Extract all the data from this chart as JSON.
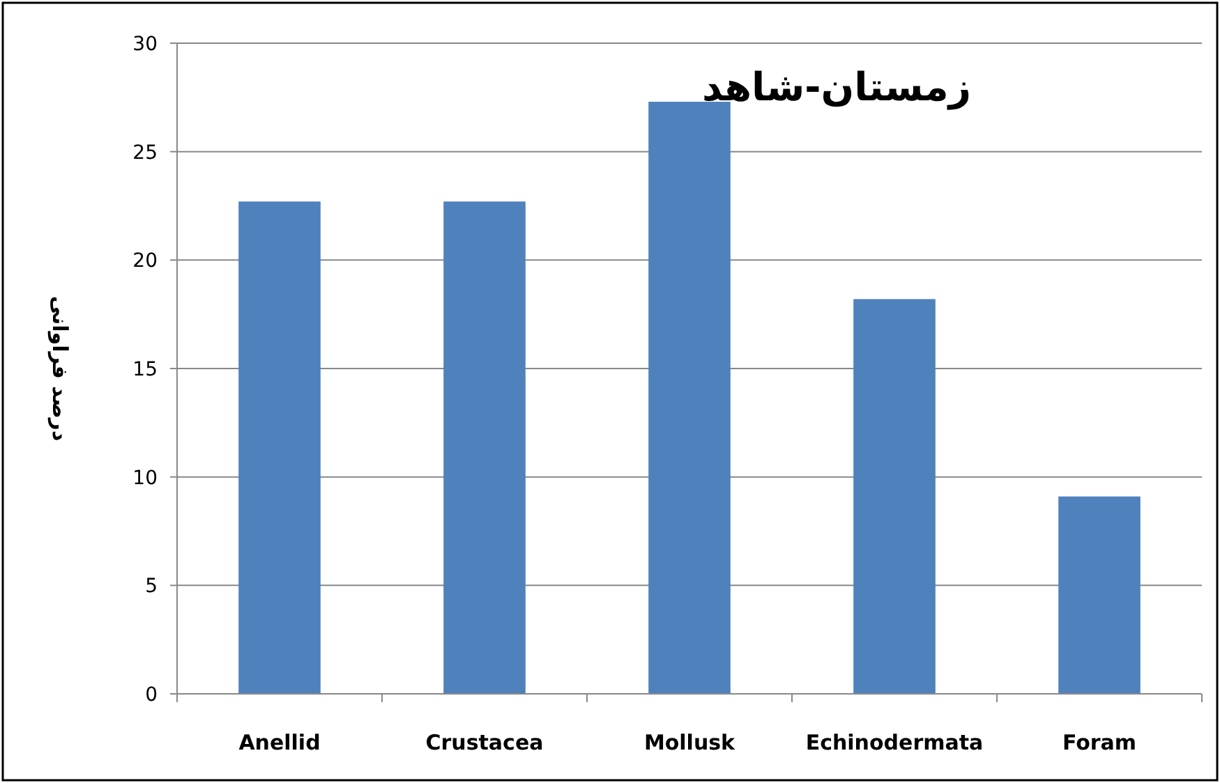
{
  "chart_data": {
    "type": "bar",
    "title": "زمستان-شاهد",
    "ylabel": "درصد فراوانی",
    "categories": [
      "Anellid",
      "Crustacea",
      "Mollusk",
      "Echinodermata",
      "Foram"
    ],
    "values": [
      22.7,
      22.7,
      27.3,
      18.2,
      9.1
    ],
    "color": "#4f81bd",
    "ylim": [
      0,
      30
    ],
    "yticks": [
      0,
      5,
      10,
      15,
      20,
      25,
      30
    ],
    "grid": "y"
  }
}
